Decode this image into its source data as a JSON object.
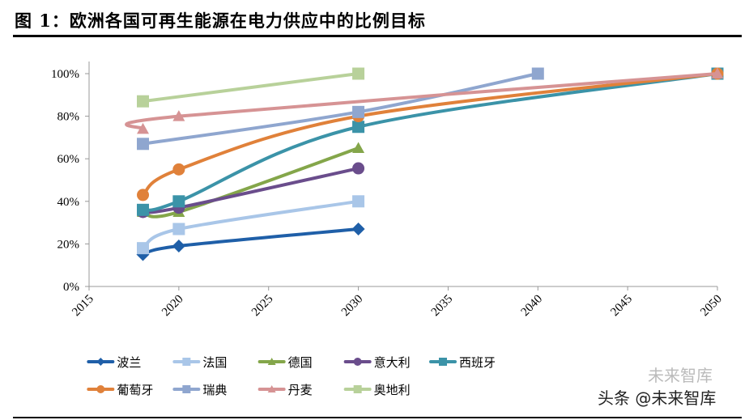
{
  "title": "图 1：欧洲各国可再生能源在电力供应中的比例目标",
  "watermark": "头条 @未来智库",
  "watermark_logo": "未来智库",
  "chart_data": {
    "type": "line",
    "title": "",
    "xlabel": "",
    "ylabel": "",
    "xlim": [
      2015,
      2050
    ],
    "ylim": [
      0,
      100
    ],
    "xticks": [
      2015,
      2020,
      2025,
      2030,
      2035,
      2040,
      2045,
      2050
    ],
    "yticks": [
      0,
      20,
      40,
      60,
      80,
      100
    ],
    "ytick_format": "%",
    "grid": false,
    "smooth": true,
    "legend": "bottom",
    "series": [
      {
        "name": "波兰",
        "color": "#1f5fa8",
        "marker": "diamond",
        "x": [
          2018,
          2020,
          2030
        ],
        "values": [
          15,
          19,
          27
        ]
      },
      {
        "name": "法国",
        "color": "#a9c6e8",
        "marker": "square",
        "x": [
          2018,
          2020,
          2030
        ],
        "values": [
          18,
          27,
          40
        ]
      },
      {
        "name": "德国",
        "color": "#84a64a",
        "marker": "triangle",
        "x": [
          2018,
          2020,
          2030
        ],
        "values": [
          35,
          35,
          65
        ]
      },
      {
        "name": "意大利",
        "color": "#6a4d8c",
        "marker": "circle",
        "x": [
          2018,
          2020,
          2030
        ],
        "values": [
          35,
          37,
          55.5
        ]
      },
      {
        "name": "西班牙",
        "color": "#3b93a8",
        "marker": "square",
        "x": [
          2018,
          2020,
          2030,
          2050
        ],
        "values": [
          36,
          40,
          75,
          100
        ]
      },
      {
        "name": "葡萄牙",
        "color": "#e0813a",
        "marker": "circle",
        "x": [
          2018,
          2020,
          2030,
          2050
        ],
        "values": [
          43,
          55,
          80,
          100
        ]
      },
      {
        "name": "瑞典",
        "color": "#8fa6cf",
        "marker": "square",
        "x": [
          2018,
          2030,
          2040
        ],
        "values": [
          67,
          82,
          100
        ]
      },
      {
        "name": "丹麦",
        "color": "#d69394",
        "marker": "triangle",
        "x": [
          2018,
          2020,
          2050
        ],
        "values": [
          74,
          80,
          100
        ]
      },
      {
        "name": "奥地利",
        "color": "#b8d19a",
        "marker": "square",
        "x": [
          2018,
          2030
        ],
        "values": [
          87,
          100
        ]
      }
    ]
  }
}
